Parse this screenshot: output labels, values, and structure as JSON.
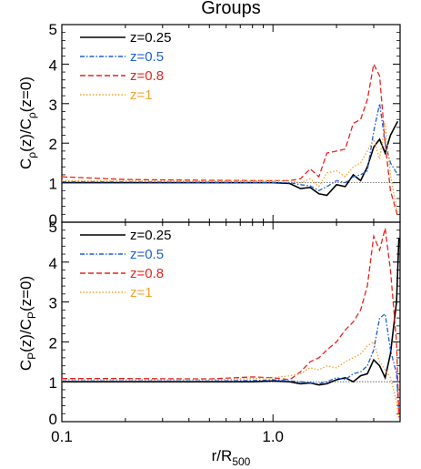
{
  "title": "Groups",
  "xlabel": "r/R",
  "xlabel_sub": "500",
  "chart_data": [
    {
      "type": "line",
      "ylabel": "Cρ(z)/Cρ(z=0)",
      "ylabel_parts": {
        "main": "C",
        "sub1": "ρ",
        "mid": "(z)/C",
        "sub2": "ρ",
        "tail": "(z=0)"
      },
      "xscale": "log",
      "xlim": [
        0.1,
        4.0
      ],
      "ylim": [
        0,
        5
      ],
      "x_ticks": [
        "0.1",
        "1.0"
      ],
      "y_ticks": [
        "0",
        "1",
        "2",
        "3",
        "4",
        "5"
      ],
      "reference_line": 1,
      "legend_position": "top-left",
      "x": [
        0.1,
        0.2,
        0.5,
        1.0,
        1.2,
        1.35,
        1.5,
        1.65,
        1.8,
        2.0,
        2.2,
        2.4,
        2.6,
        2.8,
        3.0,
        3.2,
        3.4,
        3.6,
        3.9
      ],
      "series": [
        {
          "name": "z=0.25",
          "color": "#000000",
          "dash": "solid",
          "values": [
            1.0,
            1.0,
            1.0,
            1.0,
            0.98,
            0.85,
            0.88,
            0.72,
            0.68,
            0.95,
            0.9,
            1.2,
            1.05,
            1.4,
            1.9,
            2.1,
            1.75,
            2.2,
            2.55
          ]
        },
        {
          "name": "z=0.5",
          "color": "#1f5fd6",
          "dash": "dashdot",
          "values": [
            1.02,
            1.02,
            1.01,
            1.01,
            1.0,
            0.95,
            0.92,
            0.8,
            0.9,
            1.05,
            1.0,
            1.15,
            1.2,
            1.3,
            2.3,
            3.0,
            2.0,
            1.5,
            1.2
          ]
        },
        {
          "name": "z=0.8",
          "color": "#e8241e",
          "dash": "dashed",
          "values": [
            1.15,
            1.08,
            1.06,
            1.05,
            1.05,
            1.1,
            1.35,
            1.15,
            1.75,
            1.8,
            1.85,
            2.5,
            2.6,
            3.1,
            4.0,
            3.7,
            2.0,
            0.8,
            0.15
          ]
        },
        {
          "name": "z=1",
          "color": "#f2a431",
          "dash": "dotted",
          "values": [
            1.05,
            1.04,
            1.04,
            1.05,
            1.05,
            1.0,
            1.1,
            0.9,
            1.25,
            1.3,
            1.15,
            1.4,
            1.5,
            1.8,
            2.1,
            1.6,
            2.5,
            1.2,
            0.2
          ]
        }
      ]
    },
    {
      "type": "line",
      "ylabel": "CP(z)/CP(z=0)",
      "ylabel_parts": {
        "main": "C",
        "sub1": "P",
        "mid": "(z)/C",
        "sub2": "P",
        "tail": "(z=0)"
      },
      "xscale": "log",
      "xlim": [
        0.1,
        4.0
      ],
      "ylim": [
        0,
        5
      ],
      "x_ticks": [
        "0.1",
        "1.0"
      ],
      "y_ticks": [
        "0",
        "1",
        "2",
        "3",
        "4",
        "5"
      ],
      "reference_line": 1,
      "legend_position": "top-left",
      "x": [
        0.1,
        0.2,
        0.5,
        0.8,
        1.0,
        1.2,
        1.35,
        1.5,
        1.65,
        1.8,
        2.0,
        2.2,
        2.4,
        2.6,
        2.8,
        3.0,
        3.2,
        3.4,
        3.6,
        3.85,
        3.95
      ],
      "series": [
        {
          "name": "z=0.25",
          "color": "#000000",
          "dash": "solid",
          "values": [
            1.0,
            1.0,
            1.0,
            1.0,
            1.02,
            1.0,
            0.95,
            0.97,
            0.92,
            0.95,
            1.05,
            1.1,
            1.0,
            1.15,
            1.2,
            1.55,
            1.4,
            1.1,
            1.7,
            3.0,
            4.6
          ]
        },
        {
          "name": "z=0.5",
          "color": "#1f5fd6",
          "dash": "dashdot",
          "values": [
            1.02,
            1.02,
            1.02,
            1.03,
            1.05,
            1.02,
            1.0,
            0.98,
            0.95,
            1.0,
            1.1,
            1.05,
            1.2,
            1.25,
            1.4,
            1.8,
            2.6,
            2.7,
            1.8,
            1.2,
            0.2
          ]
        },
        {
          "name": "z=0.8",
          "color": "#e8241e",
          "dash": "dashed",
          "values": [
            1.08,
            1.08,
            1.07,
            1.12,
            1.1,
            1.05,
            1.25,
            1.5,
            1.6,
            1.8,
            2.0,
            2.3,
            2.5,
            2.8,
            3.4,
            4.65,
            4.3,
            4.85,
            3.8,
            2.0,
            0.1
          ]
        },
        {
          "name": "z=1",
          "color": "#f2a431",
          "dash": "dotted",
          "values": [
            1.05,
            1.05,
            1.05,
            1.08,
            1.1,
            1.15,
            1.2,
            1.35,
            1.3,
            1.4,
            1.35,
            1.5,
            1.6,
            1.7,
            1.9,
            2.0,
            1.5,
            1.3,
            1.1,
            0.5,
            0.1
          ]
        }
      ]
    }
  ]
}
